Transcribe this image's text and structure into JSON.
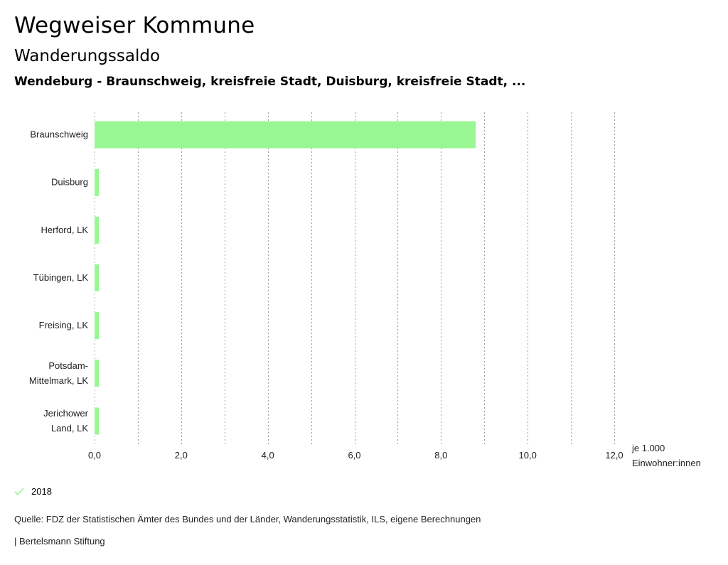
{
  "header": {
    "title": "Wegweiser Kommune",
    "subtitle": "Wanderungssaldo",
    "selection": "Wendeburg - Braunschweig, kreisfreie Stadt, Duisburg, kreisfreie Stadt, ..."
  },
  "legend": {
    "label": "2018",
    "color": "#99f793"
  },
  "footer": {
    "source": "Quelle: FDZ der Statistischen Ämter des Bundes und der Länder, Wanderungsstatistik, ILS, eigene Berechnungen",
    "credit": "| Bertelsmann Stiftung"
  },
  "chart_data": {
    "type": "bar",
    "orientation": "horizontal",
    "title": "Wanderungssaldo",
    "categories": [
      [
        "Braunschweig"
      ],
      [
        "Duisburg"
      ],
      [
        "Herford, LK"
      ],
      [
        "Tübingen, LK"
      ],
      [
        "Freising, LK"
      ],
      [
        "Potsdam-",
        "Mittelmark, LK"
      ],
      [
        "Jerichower",
        "Land, LK"
      ]
    ],
    "series": [
      {
        "name": "2018",
        "color": "#99f793",
        "values": [
          8.8,
          0.1,
          0.1,
          0.1,
          0.1,
          0.1,
          0.1
        ]
      }
    ],
    "xlim": [
      0,
      12
    ],
    "xticks": [
      0,
      2,
      4,
      6,
      8,
      10,
      12
    ],
    "xtick_labels": [
      "0,0",
      "2,0",
      "4,0",
      "6,0",
      "8,0",
      "10,0",
      "12,0"
    ],
    "unit_label": [
      "je 1.000",
      "Einwohner:innen"
    ],
    "grid": true
  }
}
